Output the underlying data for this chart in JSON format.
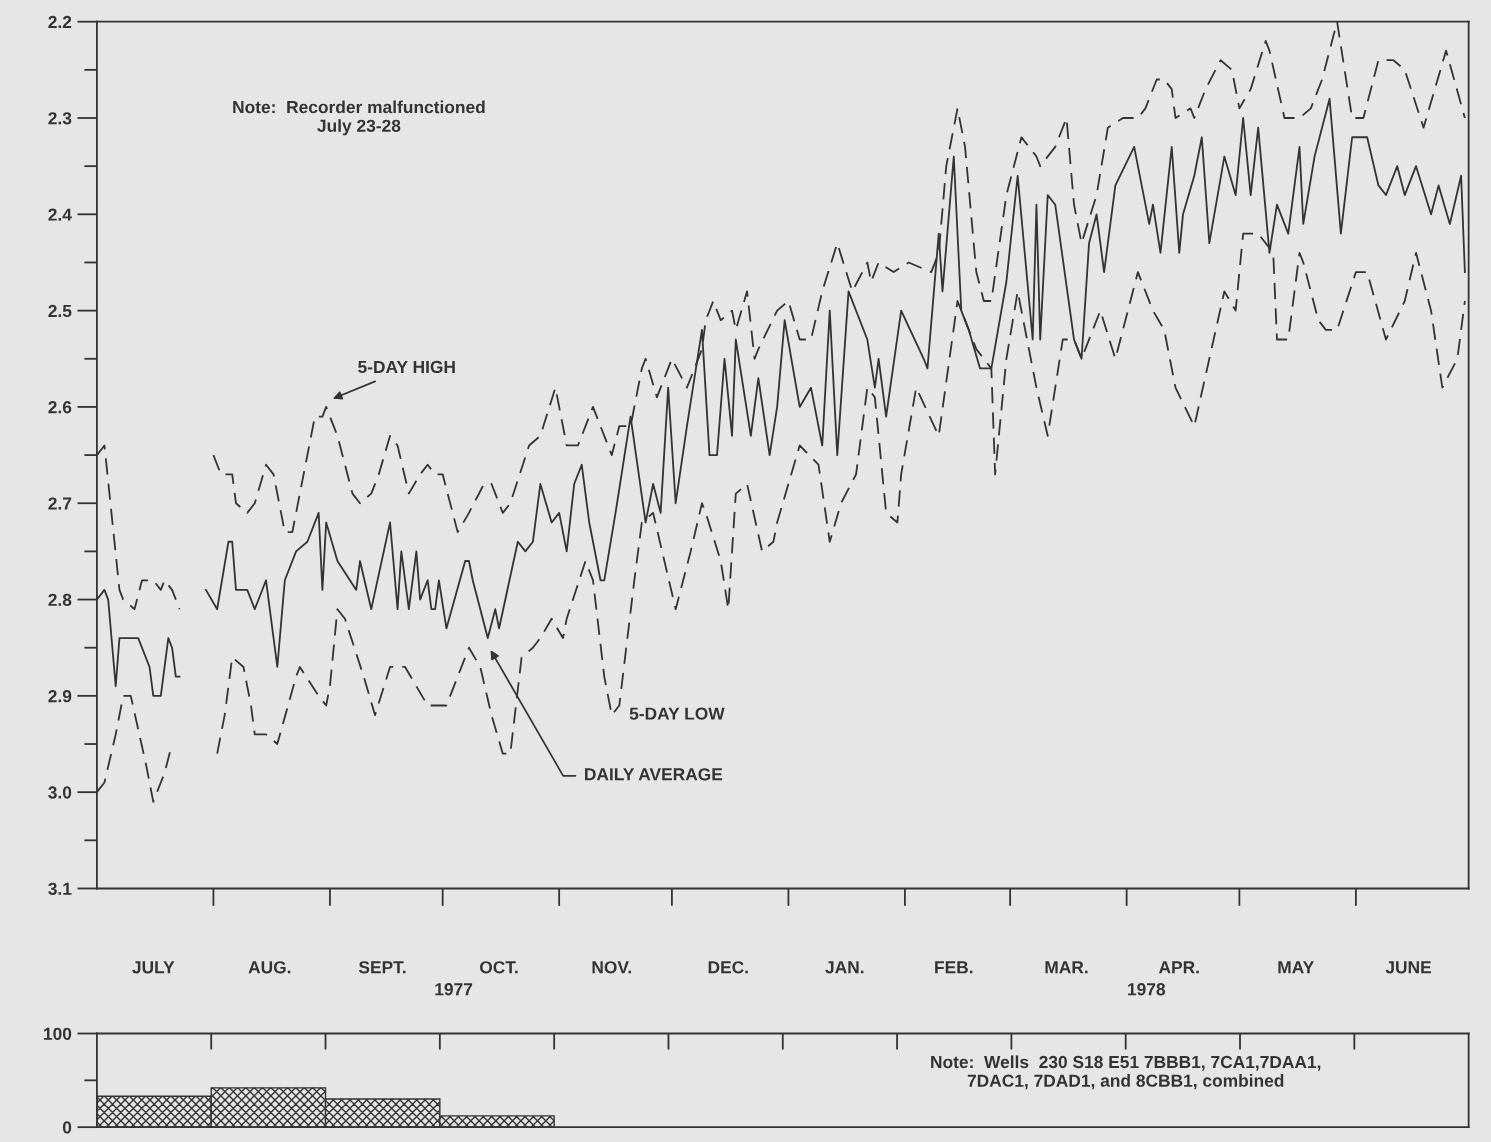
{
  "chart_data": [
    {
      "type": "line",
      "xlim": [
        "1977-07-01",
        "1978-07-01"
      ],
      "ylim": [
        3.1,
        2.2
      ],
      "xticks": [
        {
          "value": "1977-07-16",
          "label": "JULY"
        },
        {
          "value": "1977-08-16",
          "label": "AUG."
        },
        {
          "value": "1977-09-15",
          "label": "SEPT."
        },
        {
          "value": "1977-10-16",
          "label": "OCT."
        },
        {
          "value": "1977-11-15",
          "label": "NOV."
        },
        {
          "value": "1977-12-16",
          "label": "DEC."
        },
        {
          "value": "1978-01-16",
          "label": "JAN."
        },
        {
          "value": "1978-02-14",
          "label": "FEB."
        },
        {
          "value": "1978-03-16",
          "label": "MAR."
        },
        {
          "value": "1978-04-15",
          "label": "APR."
        },
        {
          "value": "1978-05-16",
          "label": "MAY"
        },
        {
          "value": "1978-06-15",
          "label": "JUNE"
        }
      ],
      "yticks": [
        2.2,
        {
          "value": 2.25,
          "label": null
        },
        2.3,
        {
          "value": 2.35,
          "label": null
        },
        2.4,
        {
          "value": 2.45,
          "label": null
        },
        2.5,
        {
          "value": 2.55,
          "label": null
        },
        2.6,
        {
          "value": 2.65,
          "label": null
        },
        2.7,
        {
          "value": 2.75,
          "label": null
        },
        2.8,
        {
          "value": 2.85,
          "label": null
        },
        2.9,
        {
          "value": 2.95,
          "label": null
        },
        {
          "value": 3.0,
          "label": "3.0"
        },
        {
          "value": 3.05,
          "label": null
        },
        3.1
      ],
      "annotations": [
        "Note:  Recorder malfunctioned\nJuly 23-28",
        "1977",
        "1978"
      ],
      "series": [
        {
          "name": "5-DAY HIGH",
          "color": "#333333",
          "line_style": "dashed",
          "x": [
            "1977-07-01",
            "1977-07-03",
            "1977-07-07",
            "1977-07-08",
            "1977-07-11",
            "1977-07-13",
            "1977-07-16",
            "1977-07-18",
            "1977-07-19",
            "1977-07-21",
            "1977-07-23",
            "1977-07-27",
            "1977-08-01",
            "1977-08-03",
            "1977-08-06",
            "1977-08-07",
            "1977-08-10",
            "1977-08-12",
            "1977-08-15",
            "1977-08-17",
            "1977-08-20",
            "1977-08-22",
            "1977-08-28",
            "1977-08-30",
            "1977-08-31",
            "1977-09-03",
            "1977-09-07",
            "1977-09-09",
            "1977-09-12",
            "1977-09-14",
            "1977-09-17",
            "1977-09-19",
            "1977-09-22",
            "1977-09-25",
            "1977-09-27",
            "1977-09-29",
            "1977-10-01",
            "1977-10-05",
            "1977-10-08",
            "1977-10-12",
            "1977-10-14",
            "1977-10-17",
            "1977-10-19",
            "1977-10-24",
            "1977-10-27",
            "1977-10-31",
            "1977-11-03",
            "1977-11-06",
            "1977-11-10",
            "1977-11-13",
            "1977-11-15",
            "1977-11-17",
            "1977-11-20",
            "1977-11-23",
            "1977-11-24",
            "1977-11-27",
            "1977-11-30",
            "1977-12-01",
            "1977-12-05",
            "1977-12-09",
            "1977-12-10",
            "1977-12-12",
            "1977-12-14",
            "1977-12-17",
            "1977-12-18",
            "1977-12-21",
            "1977-12-23",
            "1977-12-24",
            "1977-12-29",
            "1978-01-01",
            "1978-01-04",
            "1978-01-07",
            "1978-01-10",
            "1978-01-14",
            "1978-01-18",
            "1978-01-22",
            "1978-01-23",
            "1978-01-25",
            "1978-01-29",
            "1978-02-02",
            "1978-02-08",
            "1978-02-10",
            "1978-02-12",
            "1978-02-15",
            "1978-02-17",
            "1978-02-20",
            "1978-02-22",
            "1978-02-24",
            "1978-02-28",
            "1978-03-04",
            "1978-03-08",
            "1978-03-09",
            "1978-03-13",
            "1978-03-16",
            "1978-03-18",
            "1978-03-20",
            "1978-03-24",
            "1978-03-27",
            "1978-03-31",
            "1978-04-04",
            "1978-04-06",
            "1978-04-09",
            "1978-04-11",
            "1978-04-13",
            "1978-04-14",
            "1978-04-18",
            "1978-04-19",
            "1978-04-22",
            "1978-04-26",
            "1978-04-29",
            "1978-05-01",
            "1978-05-04",
            "1978-05-08",
            "1978-05-09",
            "1978-05-13",
            "1978-05-17",
            "1978-05-20",
            "1978-05-23",
            "1978-05-27",
            "1978-05-31",
            "1978-06-03",
            "1978-06-07",
            "1978-06-11",
            "1978-06-14",
            "1978-06-19",
            "1978-06-25",
            "1978-06-30"
          ],
          "values": [
            2.65,
            2.64,
            2.79,
            2.8,
            2.81,
            2.78,
            2.78,
            2.79,
            2.78,
            2.79,
            2.81,
            null,
            2.65,
            2.67,
            2.67,
            2.7,
            2.71,
            2.7,
            2.66,
            2.67,
            2.73,
            2.73,
            2.61,
            2.61,
            2.6,
            2.63,
            2.69,
            2.7,
            2.69,
            2.67,
            2.63,
            2.64,
            2.69,
            2.67,
            2.66,
            2.67,
            2.67,
            2.73,
            2.71,
            2.68,
            2.68,
            2.71,
            2.7,
            2.64,
            2.63,
            2.58,
            2.64,
            2.64,
            2.6,
            2.63,
            2.65,
            2.62,
            2.62,
            2.56,
            2.55,
            2.59,
            2.56,
            2.55,
            2.58,
            2.54,
            2.51,
            2.49,
            2.51,
            2.5,
            2.52,
            2.48,
            2.55,
            2.54,
            2.5,
            2.49,
            2.53,
            2.53,
            2.48,
            2.43,
            2.48,
            2.45,
            2.47,
            2.45,
            2.46,
            2.45,
            2.46,
            2.44,
            2.35,
            2.29,
            2.33,
            2.46,
            2.49,
            2.49,
            2.38,
            2.32,
            2.34,
            2.35,
            2.33,
            2.3,
            2.39,
            2.43,
            2.38,
            2.31,
            2.3,
            2.3,
            2.29,
            2.26,
            2.26,
            2.27,
            2.3,
            2.29,
            2.3,
            2.27,
            2.24,
            2.25,
            2.29,
            2.27,
            2.22,
            2.23,
            2.3,
            2.3,
            2.29,
            2.26,
            2.2,
            2.3,
            2.3,
            2.24,
            2.24,
            2.25,
            2.31,
            2.23,
            2.3
          ]
        },
        {
          "name": "DAILY AVERAGE",
          "color": "#333333",
          "line_style": "solid",
          "x": [
            "1977-07-01",
            "1977-07-03",
            "1977-07-04",
            "1977-07-06",
            "1977-07-07",
            "1977-07-11",
            "1977-07-12",
            "1977-07-15",
            "1977-07-16",
            "1977-07-18",
            "1977-07-20",
            "1977-07-21",
            "1977-07-22",
            "1977-07-23",
            "1977-07-26",
            "1977-07-30",
            "1977-08-02",
            "1977-08-05",
            "1977-08-06",
            "1977-08-07",
            "1977-08-10",
            "1977-08-12",
            "1977-08-15",
            "1977-08-18",
            "1977-08-20",
            "1977-08-23",
            "1977-08-26",
            "1977-08-29",
            "1977-08-30",
            "1977-08-31",
            "1977-09-03",
            "1977-09-08",
            "1977-09-09",
            "1977-09-12",
            "1977-09-17",
            "1977-09-19",
            "1977-09-20",
            "1977-09-22",
            "1977-09-24",
            "1977-09-25",
            "1977-09-27",
            "1977-09-28",
            "1977-09-29",
            "1977-09-30",
            "1977-10-02",
            "1977-10-07",
            "1977-10-08",
            "1977-10-09",
            "1977-10-13",
            "1977-10-15",
            "1977-10-16",
            "1977-10-21",
            "1977-10-23",
            "1977-10-25",
            "1977-10-27",
            "1977-10-30",
            "1977-11-01",
            "1977-11-03",
            "1977-11-05",
            "1977-11-07",
            "1977-11-09",
            "1977-11-12",
            "1977-11-13",
            "1977-11-16",
            "1977-11-20",
            "1977-11-24",
            "1977-11-26",
            "1977-11-28",
            "1977-11-30",
            "1977-12-02",
            "1977-12-05",
            "1977-12-09",
            "1977-12-11",
            "1977-12-13",
            "1977-12-15",
            "1977-12-17",
            "1977-12-18",
            "1977-12-20",
            "1977-12-22",
            "1977-12-24",
            "1977-12-27",
            "1977-12-29",
            "1977-12-31",
            "1978-01-04",
            "1978-01-07",
            "1978-01-10",
            "1978-01-12",
            "1978-01-14",
            "1978-01-17",
            "1978-01-22",
            "1978-01-24",
            "1978-01-25",
            "1978-01-27",
            "1978-01-31",
            "1978-02-06",
            "1978-02-07",
            "1978-02-10",
            "1978-02-11",
            "1978-02-14",
            "1978-02-16",
            "1978-02-18",
            "1978-02-21",
            "1978-02-24",
            "1978-02-28",
            "1978-03-03",
            "1978-03-07",
            "1978-03-08",
            "1978-03-09",
            "1978-03-11",
            "1978-03-13",
            "1978-03-18",
            "1978-03-20",
            "1978-03-22",
            "1978-03-24",
            "1978-03-25",
            "1978-03-26",
            "1978-03-29",
            "1978-04-03",
            "1978-04-07",
            "1978-04-08",
            "1978-04-10",
            "1978-04-13",
            "1978-04-15",
            "1978-04-16",
            "1978-04-19",
            "1978-04-21",
            "1978-04-23",
            "1978-04-27",
            "1978-04-30",
            "1978-05-02",
            "1978-05-04",
            "1978-05-06",
            "1978-05-09",
            "1978-05-11",
            "1978-05-14",
            "1978-05-17",
            "1978-05-18",
            "1978-05-21",
            "1978-05-25",
            "1978-05-28",
            "1978-05-31",
            "1978-06-04",
            "1978-06-07",
            "1978-06-09",
            "1978-06-12",
            "1978-06-14",
            "1978-06-17",
            "1978-06-21",
            "1978-06-23",
            "1978-06-26",
            "1978-06-29",
            "1978-06-30"
          ],
          "values": [
            2.8,
            2.79,
            2.8,
            2.89,
            2.84,
            2.84,
            2.84,
            2.87,
            2.9,
            2.9,
            2.84,
            2.85,
            2.88,
            2.88,
            null,
            2.79,
            2.81,
            2.74,
            2.74,
            2.79,
            2.79,
            2.81,
            2.78,
            2.87,
            2.78,
            2.75,
            2.74,
            2.71,
            2.79,
            2.72,
            2.76,
            2.79,
            2.76,
            2.81,
            2.72,
            2.81,
            2.75,
            2.81,
            2.75,
            2.8,
            2.78,
            2.81,
            2.81,
            2.78,
            2.83,
            2.76,
            2.76,
            2.78,
            2.84,
            2.81,
            2.83,
            2.74,
            2.75,
            2.74,
            2.68,
            2.72,
            2.71,
            2.75,
            2.68,
            2.66,
            2.72,
            2.78,
            2.78,
            2.71,
            2.61,
            2.72,
            2.68,
            2.71,
            2.58,
            2.7,
            2.62,
            2.52,
            2.65,
            2.65,
            2.55,
            2.63,
            2.53,
            2.58,
            2.63,
            2.57,
            2.65,
            2.6,
            2.51,
            2.6,
            2.58,
            2.64,
            2.5,
            2.65,
            2.48,
            2.53,
            2.58,
            2.55,
            2.61,
            2.5,
            2.55,
            2.56,
            2.42,
            2.48,
            2.34,
            2.5,
            2.52,
            2.56,
            2.56,
            2.47,
            2.36,
            2.53,
            2.39,
            2.53,
            2.38,
            2.39,
            2.53,
            2.55,
            2.43,
            2.4,
            2.43,
            2.46,
            2.37,
            2.33,
            2.41,
            2.39,
            2.44,
            2.33,
            2.44,
            2.4,
            2.36,
            2.32,
            2.43,
            2.34,
            2.38,
            2.3,
            2.38,
            2.31,
            2.44,
            2.39,
            2.42,
            2.33,
            2.41,
            2.34,
            2.28,
            2.42,
            2.32,
            2.32,
            2.37,
            2.38,
            2.35,
            2.38,
            2.35,
            2.4,
            2.37,
            2.41,
            2.36,
            2.46
          ]
        },
        {
          "name": "5-DAY LOW",
          "color": "#333333",
          "line_style": "dashed",
          "x": [
            "1977-07-01",
            "1977-07-03",
            "1977-07-06",
            "1977-07-08",
            "1977-07-10",
            "1977-07-14",
            "1977-07-16",
            "1977-07-19",
            "1977-07-21",
            "1977-07-26",
            "1977-08-02",
            "1977-08-04",
            "1977-08-06",
            "1977-08-09",
            "1977-08-11",
            "1977-08-12",
            "1977-08-15",
            "1977-08-18",
            "1977-08-23",
            "1977-08-24",
            "1977-08-29",
            "1977-08-31",
            "1977-09-01",
            "1977-09-03",
            "1977-09-05",
            "1977-09-10",
            "1977-09-13",
            "1977-09-17",
            "1977-09-21",
            "1977-09-24",
            "1977-09-27",
            "1977-09-30",
            "1977-10-02",
            "1977-10-08",
            "1977-10-11",
            "1977-10-14",
            "1977-10-17",
            "1977-10-19",
            "1977-10-22",
            "1977-10-25",
            "1977-10-27",
            "1977-10-30",
            "1977-11-02",
            "1977-11-03",
            "1977-11-08",
            "1977-11-10",
            "1977-11-13",
            "1977-11-15",
            "1977-11-17",
            "1977-11-21",
            "1977-11-23",
            "1977-11-26",
            "1977-11-29",
            "1977-12-02",
            "1977-12-06",
            "1977-12-09",
            "1977-12-10",
            "1977-12-14",
            "1977-12-16",
            "1977-12-18",
            "1977-12-21",
            "1977-12-25",
            "1977-12-28",
            "1977-12-29",
            "1978-01-04",
            "1978-01-09",
            "1978-01-12",
            "1978-01-15",
            "1978-01-19",
            "1978-01-22",
            "1978-01-24",
            "1978-01-27",
            "1978-01-30",
            "1978-01-31",
            "1978-02-04",
            "1978-02-10",
            "1978-02-15",
            "1978-02-20",
            "1978-02-24",
            "1978-02-25",
            "1978-02-28",
            "1978-03-03",
            "1978-03-08",
            "1978-03-11",
            "1978-03-15",
            "1978-03-18",
            "1978-03-20",
            "1978-03-25",
            "1978-03-29",
            "1978-04-04",
            "1978-04-08",
            "1978-04-11",
            "1978-04-14",
            "1978-04-19",
            "1978-04-23",
            "1978-04-27",
            "1978-04-30",
            "1978-05-02",
            "1978-05-06",
            "1978-05-10",
            "1978-05-11",
            "1978-05-14",
            "1978-05-17",
            "1978-05-18",
            "1978-05-22",
            "1978-05-24",
            "1978-05-27",
            "1978-06-01",
            "1978-06-04",
            "1978-06-09",
            "1978-06-14",
            "1978-06-17",
            "1978-06-21",
            "1978-06-24",
            "1978-06-28",
            "1978-06-30"
          ],
          "values": [
            3.0,
            2.99,
            2.94,
            2.9,
            2.9,
            2.97,
            3.01,
            2.98,
            2.95,
            null,
            2.96,
            2.92,
            2.86,
            2.87,
            2.91,
            2.94,
            2.94,
            2.95,
            2.88,
            2.87,
            2.9,
            2.91,
            2.89,
            2.81,
            2.82,
            2.88,
            2.92,
            2.87,
            2.87,
            2.89,
            2.91,
            2.91,
            2.91,
            2.85,
            2.87,
            2.92,
            2.96,
            2.96,
            2.86,
            2.85,
            2.84,
            2.82,
            2.84,
            2.82,
            2.76,
            2.78,
            2.88,
            2.92,
            2.91,
            2.78,
            2.72,
            2.71,
            2.76,
            2.81,
            2.75,
            2.7,
            2.71,
            2.76,
            2.81,
            2.69,
            2.68,
            2.75,
            2.74,
            2.72,
            2.64,
            2.66,
            2.74,
            2.7,
            2.67,
            2.58,
            2.59,
            2.71,
            2.72,
            2.67,
            2.58,
            2.63,
            2.49,
            2.54,
            2.56,
            2.67,
            2.55,
            2.48,
            2.58,
            2.63,
            2.53,
            2.53,
            2.55,
            2.5,
            2.55,
            2.46,
            2.5,
            2.52,
            2.58,
            2.62,
            2.55,
            2.48,
            2.5,
            2.42,
            2.42,
            2.44,
            2.53,
            2.53,
            2.44,
            2.45,
            2.51,
            2.52,
            2.52,
            2.46,
            2.46,
            2.53,
            2.49,
            2.44,
            2.5,
            2.58,
            2.55,
            2.49
          ]
        }
      ]
    },
    {
      "type": "bar",
      "categories": [
        null,
        null,
        null,
        null,
        null,
        null,
        null,
        null,
        null,
        null,
        null,
        null
      ],
      "values": [
        33,
        42,
        30,
        12,
        null,
        null,
        null,
        null,
        null,
        null,
        null,
        null
      ],
      "color": "#333333",
      "ylim": [
        0,
        100
      ],
      "yticks": [
        0,
        {
          "value": 50,
          "label": null
        },
        100
      ],
      "tick_labels": "y",
      "annotations": [
        "Note:  Wells  230 S18 E51 7BBB1, 7CA1,7DAA1,\n7DAC1, 7DAD1, and 8CBB1, combined"
      ]
    }
  ]
}
